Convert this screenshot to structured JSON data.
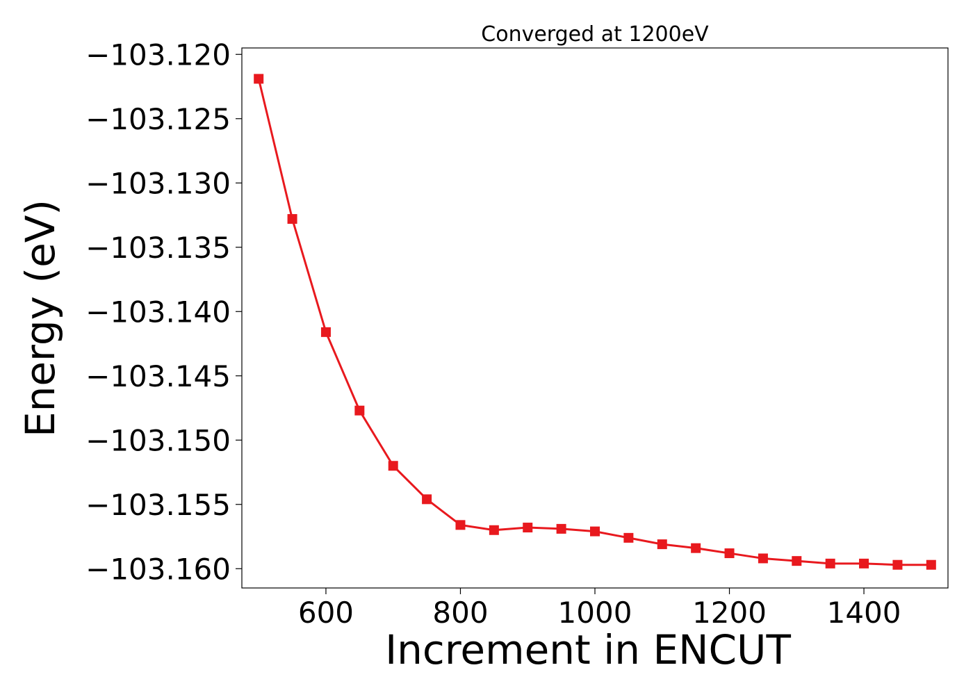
{
  "chart_data": {
    "type": "line",
    "title": "Converged at 1200eV",
    "xlabel": "Increment in ENCUT",
    "ylabel": "Energy (eV)",
    "xlim": [
      475,
      1525
    ],
    "ylim": [
      -103.1615,
      -103.1195
    ],
    "x_ticks": [
      600,
      800,
      1000,
      1200,
      1400
    ],
    "x_tick_labels": [
      "600",
      "800",
      "1000",
      "1200",
      "1400"
    ],
    "y_ticks": [
      -103.12,
      -103.125,
      -103.13,
      -103.135,
      -103.14,
      -103.145,
      -103.15,
      -103.155,
      -103.16
    ],
    "y_tick_labels": [
      "−103.120",
      "−103.125",
      "−103.130",
      "−103.135",
      "−103.140",
      "−103.145",
      "−103.150",
      "−103.155",
      "−103.160"
    ],
    "grid": false,
    "series": [
      {
        "color": "#e8191e",
        "marker": "square",
        "x": [
          500,
          550,
          600,
          650,
          700,
          750,
          800,
          850,
          900,
          950,
          1000,
          1050,
          1100,
          1150,
          1200,
          1250,
          1300,
          1350,
          1400,
          1450,
          1500
        ],
        "y": [
          -103.1219,
          -103.1328,
          -103.1416,
          -103.1477,
          -103.152,
          -103.1546,
          -103.1566,
          -103.157,
          -103.1568,
          -103.1569,
          -103.1571,
          -103.1576,
          -103.1581,
          -103.1584,
          -103.1588,
          -103.1592,
          -103.1594,
          -103.1596,
          -103.1596,
          -103.1597,
          -103.1597
        ]
      }
    ]
  }
}
